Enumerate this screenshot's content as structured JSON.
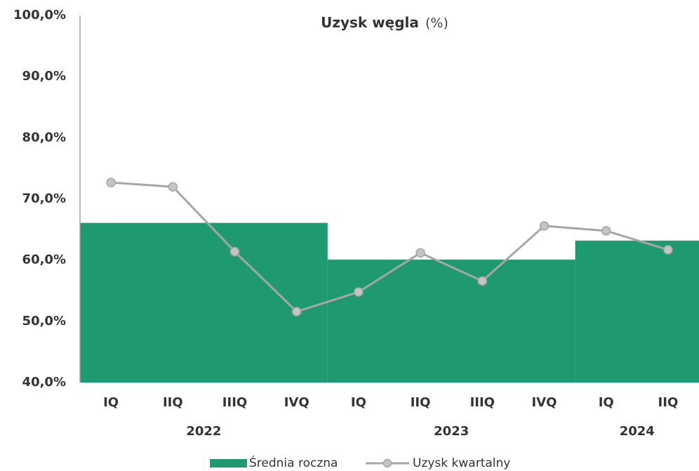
{
  "chart_data": {
    "type": "combo",
    "title": "Uzysk węgla",
    "title_unit": "(%)",
    "groups": [
      {
        "label": "2022",
        "categories": [
          "IQ",
          "IIQ",
          "IIIQ",
          "IVQ"
        ]
      },
      {
        "label": "2023",
        "categories": [
          "IQ",
          "IIQ",
          "IIIQ",
          "IVQ"
        ]
      },
      {
        "label": "2024",
        "categories": [
          "IQ",
          "IIQ"
        ]
      }
    ],
    "series": [
      {
        "name": "Średnia roczna",
        "kind": "area",
        "color": "#1e9970",
        "values": [
          66.1,
          60.1,
          63.2
        ]
      },
      {
        "name": "Uzysk kwartalny",
        "kind": "line",
        "color": "#a6a6a6",
        "marker_color": "#c4c4c4",
        "values": [
          72.7,
          72.0,
          61.4,
          51.6,
          54.8,
          61.2,
          56.6,
          65.6,
          64.8,
          61.7
        ]
      }
    ],
    "ylim": [
      40,
      100
    ],
    "yticks": [
      {
        "value": 40,
        "label": "40,0%"
      },
      {
        "value": 50,
        "label": "50,0%"
      },
      {
        "value": 60,
        "label": "60,0%"
      },
      {
        "value": 70,
        "label": "70,0%"
      },
      {
        "value": 80,
        "label": "80,0%"
      },
      {
        "value": 90,
        "label": "90,0%"
      },
      {
        "value": 100,
        "label": "100,0%"
      }
    ],
    "grid": false
  }
}
